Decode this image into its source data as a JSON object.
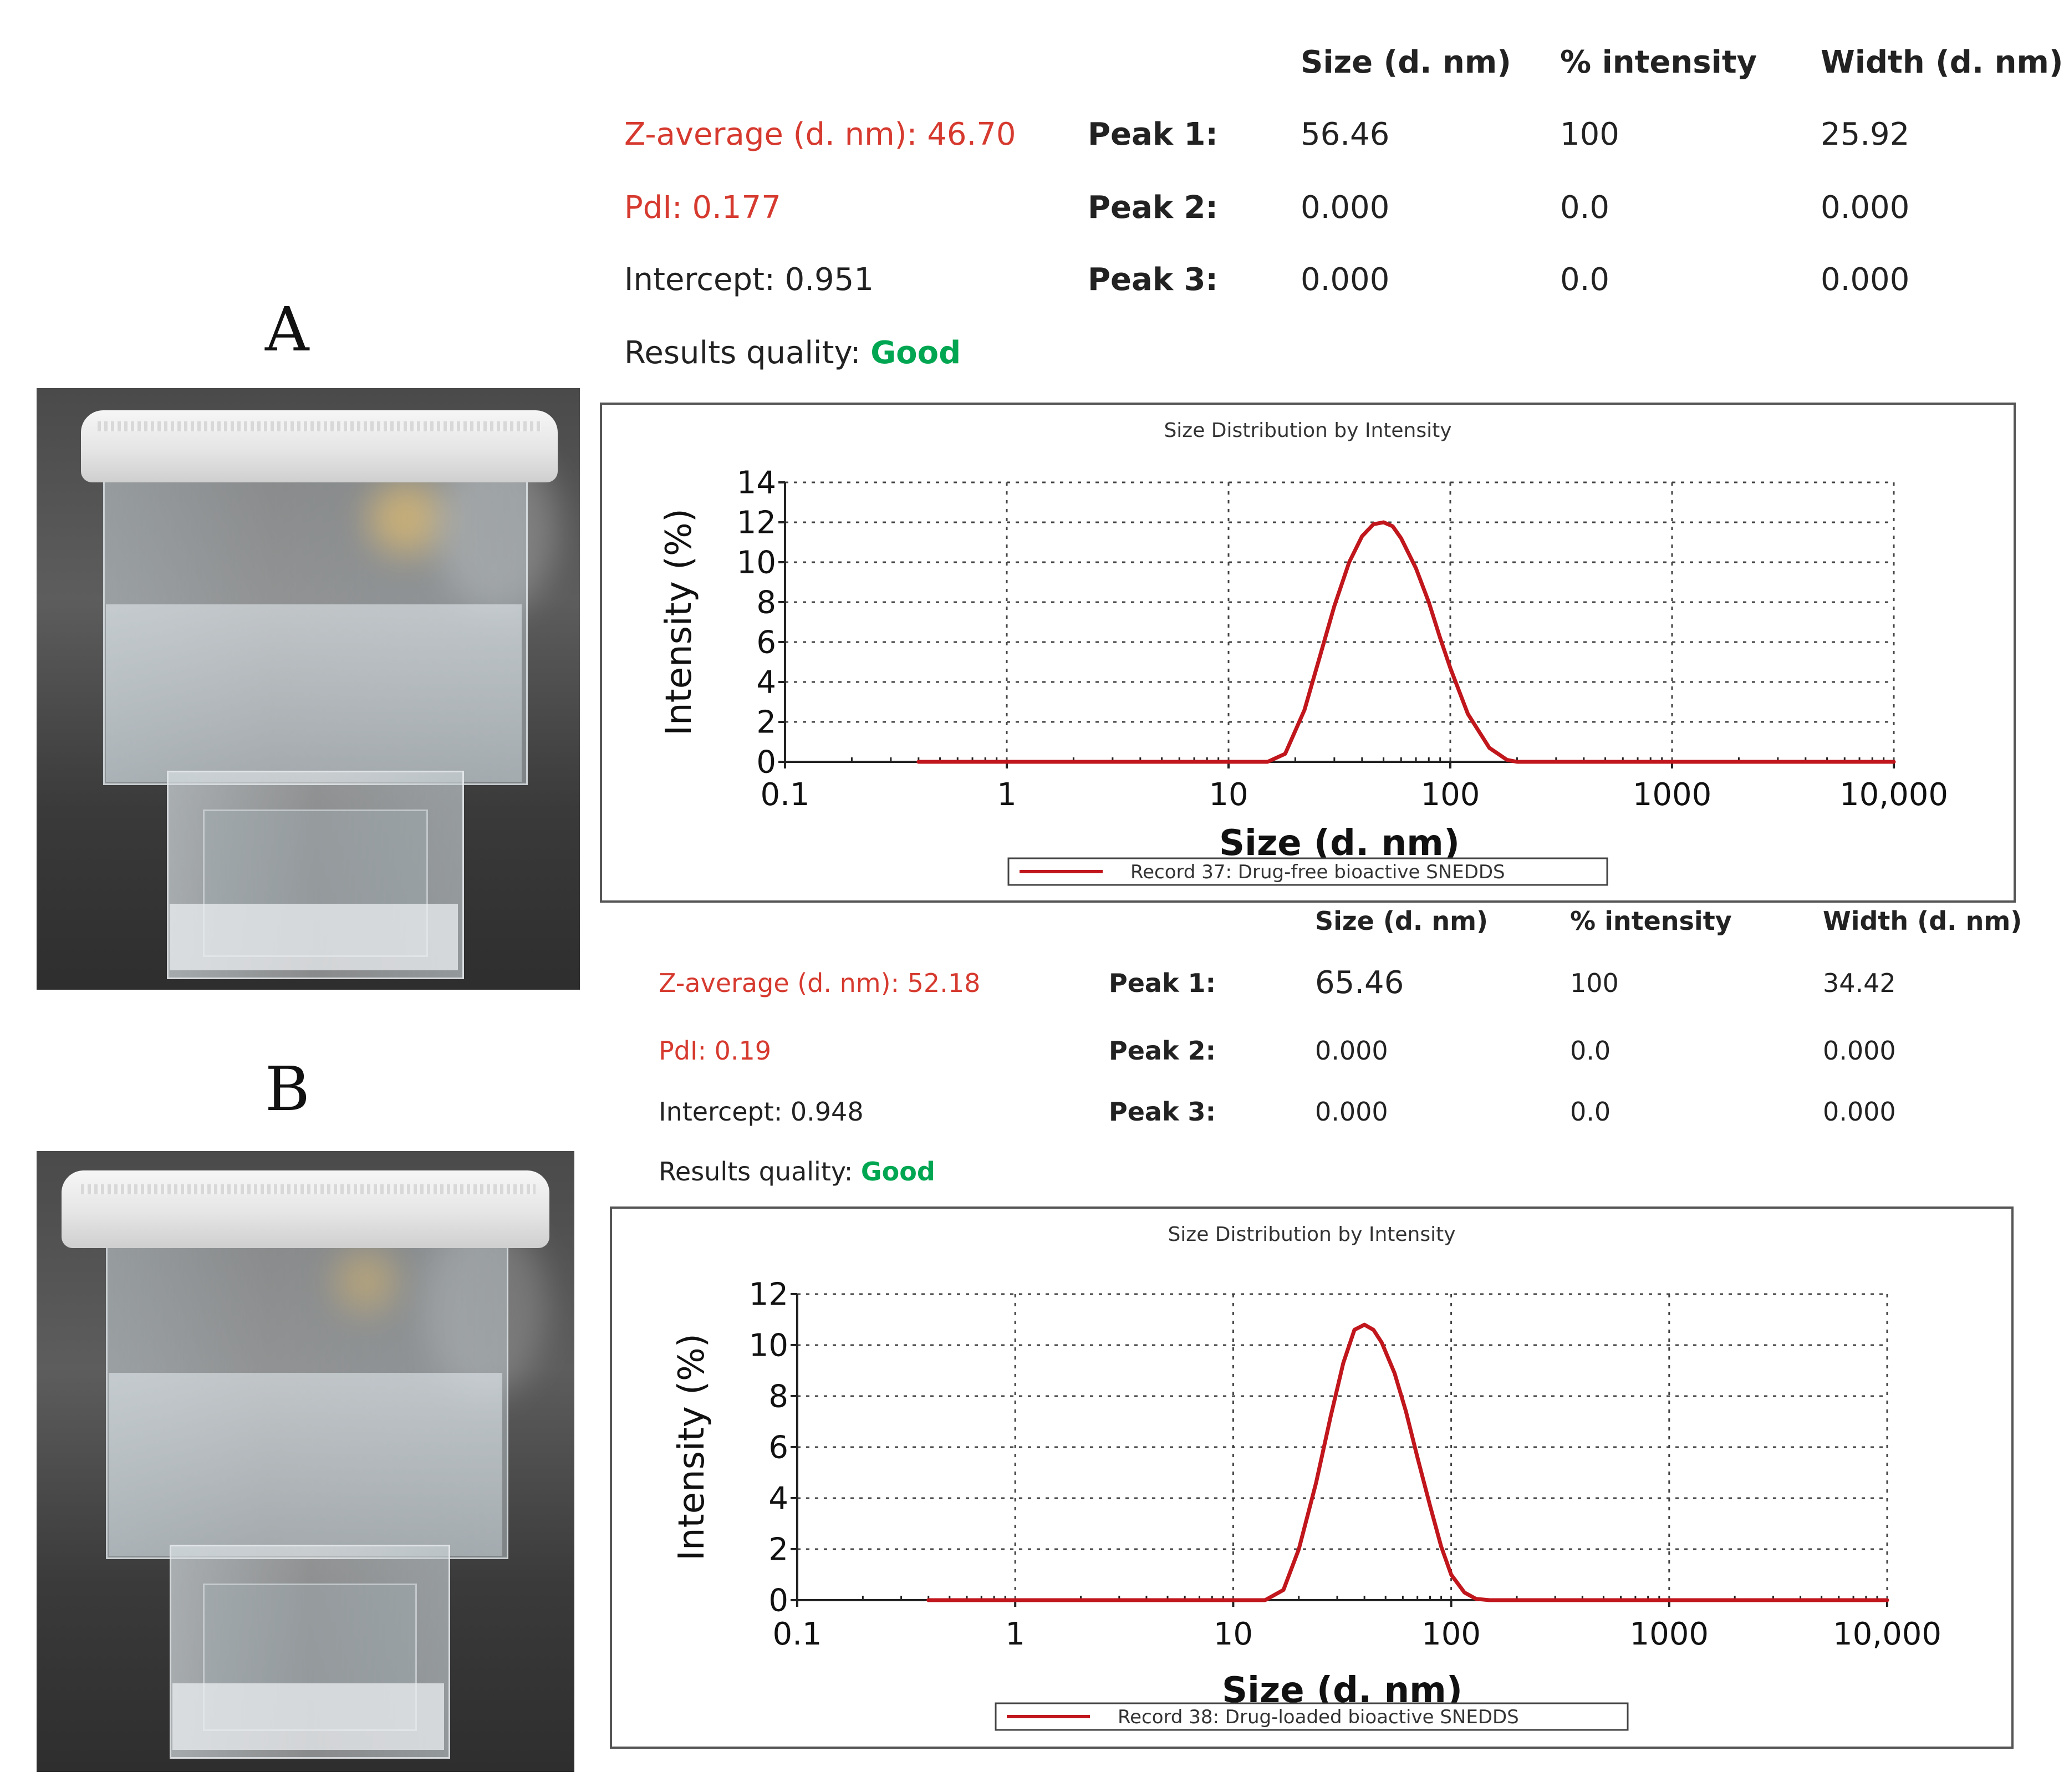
{
  "panels": {
    "a": {
      "letter": "A",
      "z_average": "Z-average (d. nm): 46.70",
      "pdi": "PdI: 0.177",
      "intercept": "Intercept: 0.951",
      "quality_label": "Results quality:",
      "quality_value": "Good",
      "headers": {
        "size": "Size (d. nm)",
        "intensity": "% intensity",
        "width": "Width (d. nm)"
      },
      "peaks": [
        {
          "label": "Peak 1:",
          "size": "56.46",
          "intensity": "100",
          "width": "25.92"
        },
        {
          "label": "Peak 2:",
          "size": "0.000",
          "intensity": "0.0",
          "width": "0.000"
        },
        {
          "label": "Peak 3:",
          "size": "0.000",
          "intensity": "0.0",
          "width": "0.000"
        }
      ]
    },
    "b": {
      "letter": "B",
      "z_average": "Z-average (d. nm): 52.18",
      "pdi": "PdI: 0.19",
      "intercept": "Intercept: 0.948",
      "quality_label": "Results quality:",
      "quality_value": "Good",
      "headers": {
        "size": "Size (d. nm)",
        "intensity": "% intensity",
        "width": "Width (d. nm)"
      },
      "peaks": [
        {
          "label": "Peak 1:",
          "size": "65.46",
          "intensity": "100",
          "width": "34.42"
        },
        {
          "label": "Peak 2:",
          "size": "0.000",
          "intensity": "0.0",
          "width": "0.000"
        },
        {
          "label": "Peak 3:",
          "size": "0.000",
          "intensity": "0.0",
          "width": "0.000"
        }
      ]
    }
  },
  "colors": {
    "curve": "#c0161c",
    "red_text": "#d63a2f",
    "good": "#00a651"
  },
  "chart_data": [
    {
      "type": "line",
      "title": "Size Distribution by Intensity",
      "xlabel": "Size (d. nm)",
      "ylabel": "Intensity (%)",
      "xscale": "log",
      "xlim": [
        0.1,
        10000
      ],
      "ylim": [
        0,
        14
      ],
      "x_ticks": [
        0.1,
        1,
        10,
        100,
        1000,
        10000
      ],
      "x_tick_labels": [
        "0.1",
        "1",
        "10",
        "100",
        "1000",
        "10,000"
      ],
      "y_ticks": [
        0,
        2,
        4,
        6,
        8,
        10,
        12,
        14
      ],
      "y_tick_labels": [
        "0",
        "2",
        "4",
        "6",
        "8",
        "10",
        "12",
        "14"
      ],
      "grid": true,
      "legend": "bottom-center",
      "series": [
        {
          "name": "Record 37: Drug-free bioactive SNEDDS",
          "color": "#c0161c",
          "x": [
            0.4,
            1,
            5,
            10,
            15,
            18,
            22,
            26,
            30,
            35,
            40,
            45,
            50,
            55,
            60,
            70,
            80,
            90,
            100,
            120,
            150,
            180,
            200,
            300,
            1000,
            10000
          ],
          "y": [
            0,
            0,
            0,
            0,
            0,
            0.4,
            2.6,
            5.4,
            7.8,
            10.0,
            11.3,
            11.9,
            12.0,
            11.8,
            11.2,
            9.7,
            8.0,
            6.2,
            4.7,
            2.4,
            0.7,
            0.1,
            0,
            0,
            0,
            0
          ]
        }
      ]
    },
    {
      "type": "line",
      "title": "Size Distribution by Intensity",
      "xlabel": "Size (d. nm)",
      "ylabel": "Intensity (%)",
      "xscale": "log",
      "xlim": [
        0.1,
        10000
      ],
      "ylim": [
        0,
        12
      ],
      "x_ticks": [
        0.1,
        1,
        10,
        100,
        1000,
        10000
      ],
      "x_tick_labels": [
        "0.1",
        "1",
        "10",
        "100",
        "1000",
        "10,000"
      ],
      "y_ticks": [
        0,
        2,
        4,
        6,
        8,
        10,
        12
      ],
      "y_tick_labels": [
        "0",
        "2",
        "4",
        "6",
        "8",
        "10",
        "12"
      ],
      "grid": true,
      "legend": "bottom-center",
      "series": [
        {
          "name": "Record 38: Drug-loaded bioactive SNEDDS",
          "color": "#c0161c",
          "x": [
            0.4,
            1,
            5,
            10,
            14,
            17,
            20,
            24,
            28,
            32,
            36,
            40,
            44,
            48,
            55,
            62,
            70,
            80,
            90,
            100,
            115,
            130,
            150,
            1000,
            10000
          ],
          "y": [
            0,
            0,
            0,
            0,
            0,
            0.4,
            2.0,
            4.6,
            7.2,
            9.3,
            10.6,
            10.8,
            10.6,
            10.1,
            8.9,
            7.4,
            5.6,
            3.7,
            2.1,
            1.0,
            0.3,
            0.05,
            0,
            0,
            0
          ]
        }
      ]
    }
  ]
}
